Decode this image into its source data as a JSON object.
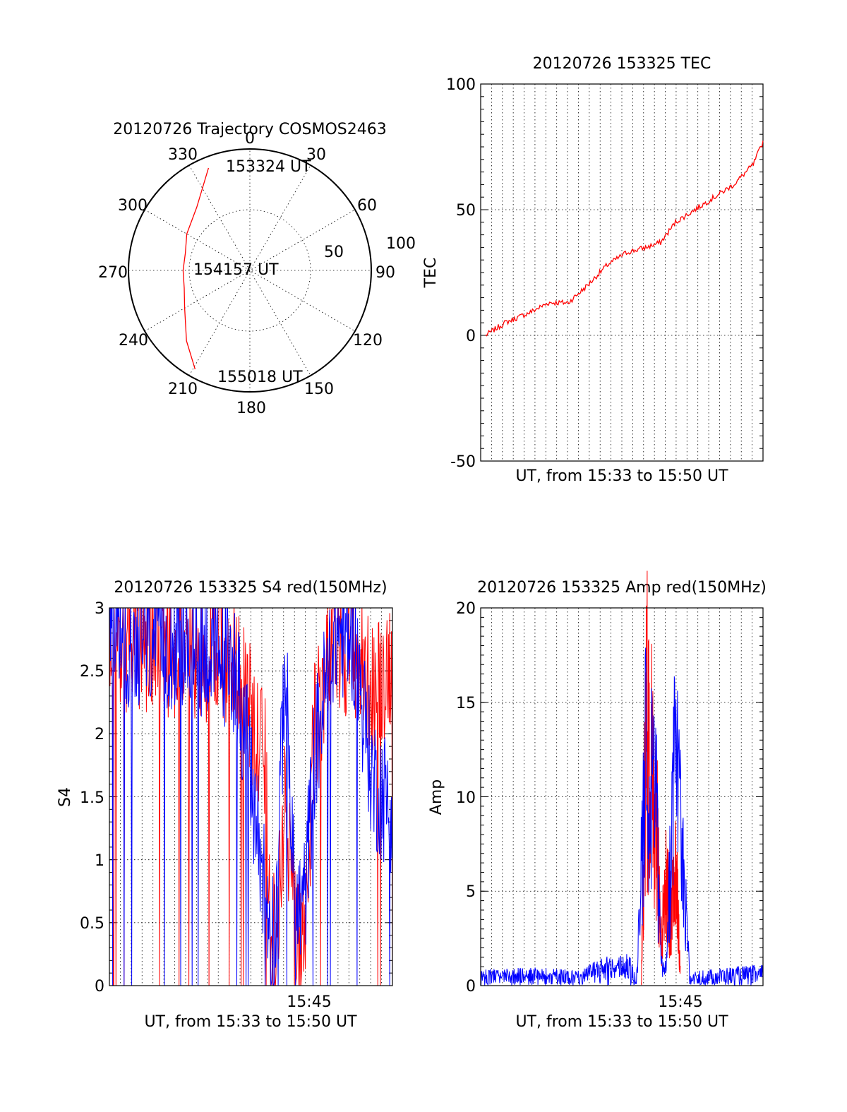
{
  "chart_data": [
    {
      "id": "polar",
      "type": "scatter",
      "title": "20120726 Trajectory COSMOS2463",
      "coordinate_system": "polar (azimuth clockwise from north, zenith angle radial)",
      "angle_labels": [
        "0",
        "30",
        "60",
        "90",
        "120",
        "150",
        "180",
        "210",
        "240",
        "270",
        "300",
        "330"
      ],
      "radial_labels": [
        "50",
        "100"
      ],
      "rlim": [
        0,
        100
      ],
      "annotations": [
        "153324 UT",
        "154157 UT",
        "155018 UT"
      ],
      "trajectory_color": "#ff0000",
      "trajectory": [
        {
          "az": 338,
          "r": 91
        },
        {
          "az": 320,
          "r": 68
        },
        {
          "az": 300,
          "r": 60
        },
        {
          "az": 285,
          "r": 55
        },
        {
          "az": 270,
          "r": 55
        },
        {
          "az": 255,
          "r": 56
        },
        {
          "az": 240,
          "r": 62
        },
        {
          "az": 222,
          "r": 78
        },
        {
          "az": 209,
          "r": 93
        }
      ]
    },
    {
      "id": "tec",
      "type": "line",
      "title": "20120726 153325 TEC",
      "xlabel": "UT, from 15:33 to 15:50 UT",
      "ylabel": "TEC",
      "ylim": [
        -50,
        100
      ],
      "yticks": [
        "100",
        "50",
        "0",
        "-50"
      ],
      "xlim": [
        15.55,
        15.84
      ],
      "grid": true,
      "line_color": "#ff0000",
      "x": [
        15.555,
        15.575,
        15.6,
        15.62,
        15.64,
        15.66,
        15.68,
        15.7,
        15.72,
        15.735,
        15.75,
        15.77,
        15.79,
        15.81,
        15.83,
        15.84
      ],
      "y": [
        0,
        5,
        9,
        13,
        13,
        20,
        28,
        33,
        35,
        37,
        45,
        50,
        55,
        60,
        68,
        77
      ]
    },
    {
      "id": "s4",
      "type": "line",
      "title": "20120726 153325 S4 red(150MHz)",
      "xlabel": "UT, from 15:33 to 15:50 UT",
      "ylabel": "S4",
      "ylim": [
        0,
        3
      ],
      "yticks": [
        "3",
        "2.5",
        "2",
        "1.5",
        "1",
        "0.5",
        "0"
      ],
      "xtick_label": "15:45",
      "xlim": [
        15.55,
        15.84
      ],
      "grid": true,
      "series": [
        {
          "color": "#ff0000",
          "x": [
            15.55,
            15.62,
            15.65,
            15.68,
            15.71,
            15.715,
            15.72,
            15.73,
            15.74,
            15.75,
            15.76,
            15.78,
            15.8,
            15.82,
            15.84
          ],
          "y": [
            2.5,
            2.45,
            2.4,
            2.35,
            1.5,
            0.2,
            0.15,
            1.2,
            0.15,
            0.1,
            1.8,
            2.5,
            2.45,
            2.1,
            2.4
          ]
        },
        {
          "color": "#0000ff",
          "x": [
            15.55,
            15.62,
            15.65,
            15.68,
            15.7,
            15.715,
            15.72,
            15.73,
            15.74,
            15.75,
            15.76,
            15.78,
            15.8,
            15.82,
            15.84
          ],
          "y": [
            2.55,
            2.5,
            2.45,
            2.3,
            1.1,
            0.25,
            0.2,
            2.4,
            0.3,
            0.45,
            1.6,
            2.6,
            2.55,
            1.4,
            1.2
          ]
        }
      ]
    },
    {
      "id": "amp",
      "type": "line",
      "title": "20120726 153325 Amp red(150MHz)",
      "xlabel": "UT, from 15:33 to 15:50 UT",
      "ylabel": "Amp",
      "ylim": [
        0,
        20
      ],
      "yticks": [
        "20",
        "15",
        "10",
        "5",
        "0"
      ],
      "xtick_label": "15:45",
      "xlim": [
        15.55,
        15.84
      ],
      "grid": true,
      "series": [
        {
          "color": "#ff0000",
          "x": [
            15.715,
            15.72,
            15.725,
            15.73,
            15.735,
            15.74,
            15.745,
            15.75,
            15.755
          ],
          "y": [
            0.5,
            19.5,
            17.5,
            14,
            3,
            8,
            5,
            10,
            1
          ]
        },
        {
          "color": "#0000ff",
          "x": [
            15.55,
            15.6,
            15.65,
            15.7,
            15.71,
            15.715,
            15.72,
            15.73,
            15.735,
            15.74,
            15.75,
            15.76,
            15.765,
            15.78,
            15.8,
            15.84
          ],
          "y": [
            0.6,
            0.7,
            0.6,
            1.5,
            0.3,
            8,
            18,
            14,
            2,
            1,
            16,
            6,
            0.5,
            0.6,
            0.7,
            0.8
          ]
        }
      ]
    }
  ]
}
